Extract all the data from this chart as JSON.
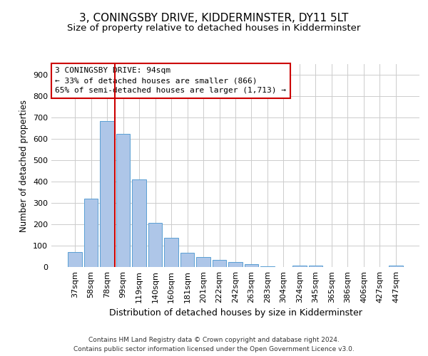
{
  "title": "3, CONINGSBY DRIVE, KIDDERMINSTER, DY11 5LT",
  "subtitle": "Size of property relative to detached houses in Kidderminster",
  "xlabel": "Distribution of detached houses by size in Kidderminster",
  "ylabel": "Number of detached properties",
  "categories": [
    "37sqm",
    "58sqm",
    "78sqm",
    "99sqm",
    "119sqm",
    "140sqm",
    "160sqm",
    "181sqm",
    "201sqm",
    "222sqm",
    "242sqm",
    "263sqm",
    "283sqm",
    "304sqm",
    "324sqm",
    "345sqm",
    "365sqm",
    "386sqm",
    "406sqm",
    "427sqm",
    "447sqm"
  ],
  "values": [
    70,
    320,
    685,
    625,
    410,
    207,
    138,
    68,
    46,
    32,
    22,
    12,
    5,
    0,
    8,
    8,
    0,
    0,
    0,
    0,
    8
  ],
  "bar_color": "#aec6e8",
  "bar_edge_color": "#5a9fd4",
  "vline_color": "#cc0000",
  "vline_x": 2.5,
  "annotation_line1": "3 CONINGSBY DRIVE: 94sqm",
  "annotation_line2": "← 33% of detached houses are smaller (866)",
  "annotation_line3": "65% of semi-detached houses are larger (1,713) →",
  "annotation_box_color": "#cc0000",
  "ylim": [
    0,
    950
  ],
  "yticks": [
    0,
    100,
    200,
    300,
    400,
    500,
    600,
    700,
    800,
    900
  ],
  "grid_color": "#cccccc",
  "background_color": "#ffffff",
  "footer": "Contains HM Land Registry data © Crown copyright and database right 2024.\nContains public sector information licensed under the Open Government Licence v3.0.",
  "title_fontsize": 11,
  "subtitle_fontsize": 9.5,
  "xlabel_fontsize": 9,
  "ylabel_fontsize": 8.5,
  "tick_fontsize": 8,
  "annotation_fontsize": 8,
  "footer_fontsize": 6.5
}
